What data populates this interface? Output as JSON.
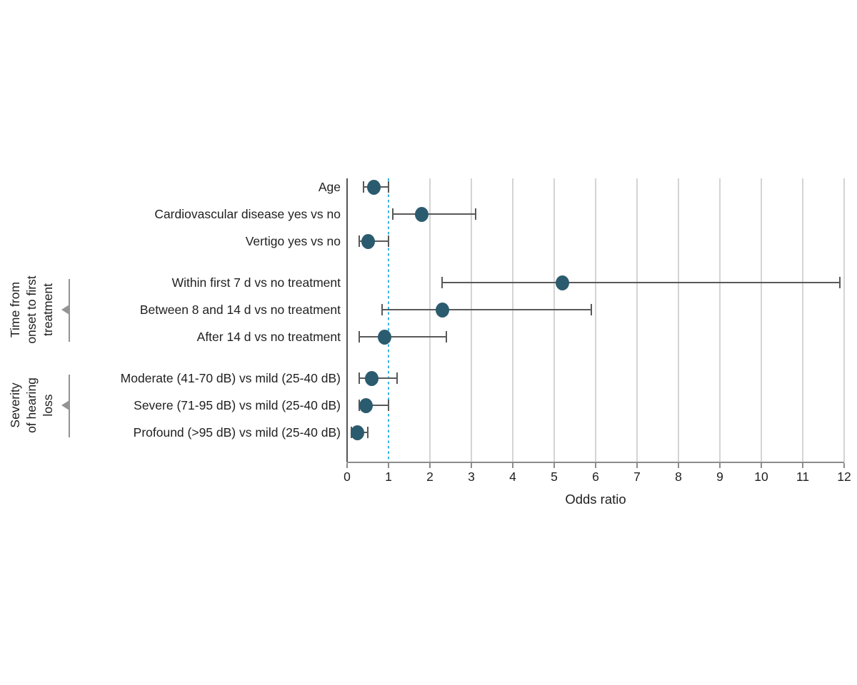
{
  "page": {
    "background": "#ffffff"
  },
  "chart_data": {
    "type": "scatter",
    "variant": "forest-plot",
    "title": "",
    "xlabel": "Odds ratio",
    "xlim": [
      0,
      12
    ],
    "x_ticks": [
      0,
      1,
      2,
      3,
      4,
      5,
      6,
      7,
      8,
      9,
      10,
      11,
      12
    ],
    "reference_line_x": 1,
    "grid": true,
    "legend": "none",
    "groups": [
      {
        "label": "",
        "label_lines": [],
        "rows": [
          {
            "label": "Age",
            "or": 0.65,
            "ci_low": 0.4,
            "ci_high": 1.0
          },
          {
            "label": "Cardiovascular disease yes vs no",
            "or": 1.8,
            "ci_low": 1.1,
            "ci_high": 3.1
          },
          {
            "label": "Vertigo yes vs no",
            "or": 0.5,
            "ci_low": 0.3,
            "ci_high": 1.0
          }
        ]
      },
      {
        "label": "Time from onset to first treatment",
        "label_lines": [
          "Time from",
          "onset to first",
          "treatment"
        ],
        "rows": [
          {
            "label": "Within first 7 d vs no treatment",
            "or": 5.2,
            "ci_low": 2.3,
            "ci_high": 11.9
          },
          {
            "label": "Between 8 and 14 d vs no treatment",
            "or": 2.3,
            "ci_low": 0.85,
            "ci_high": 5.9
          },
          {
            "label": "After 14 d vs no treatment",
            "or": 0.9,
            "ci_low": 0.3,
            "ci_high": 2.4
          }
        ]
      },
      {
        "label": "Severity of hearing loss",
        "label_lines": [
          "Severity",
          "of hearing",
          "loss"
        ],
        "rows": [
          {
            "label": "Moderate (41-70 dB) vs mild (25-40 dB)",
            "or": 0.6,
            "ci_low": 0.3,
            "ci_high": 1.2
          },
          {
            "label": "Severe (71-95 dB) vs mild (25-40 dB)",
            "or": 0.45,
            "ci_low": 0.3,
            "ci_high": 1.0
          },
          {
            "label": "Profound (>95 dB) vs mild (25-40 dB)",
            "or": 0.25,
            "ci_low": 0.1,
            "ci_high": 0.5
          }
        ]
      }
    ],
    "colors": {
      "dot": "#2b5b6e",
      "error_bar": "#595959",
      "reference_line": "#36b1e3",
      "gridline": "#d4d4d4",
      "axis": "#8c8c8c",
      "y_axis": "#555555",
      "text": "#1f1f1f",
      "group_bracket": "#949494"
    }
  }
}
